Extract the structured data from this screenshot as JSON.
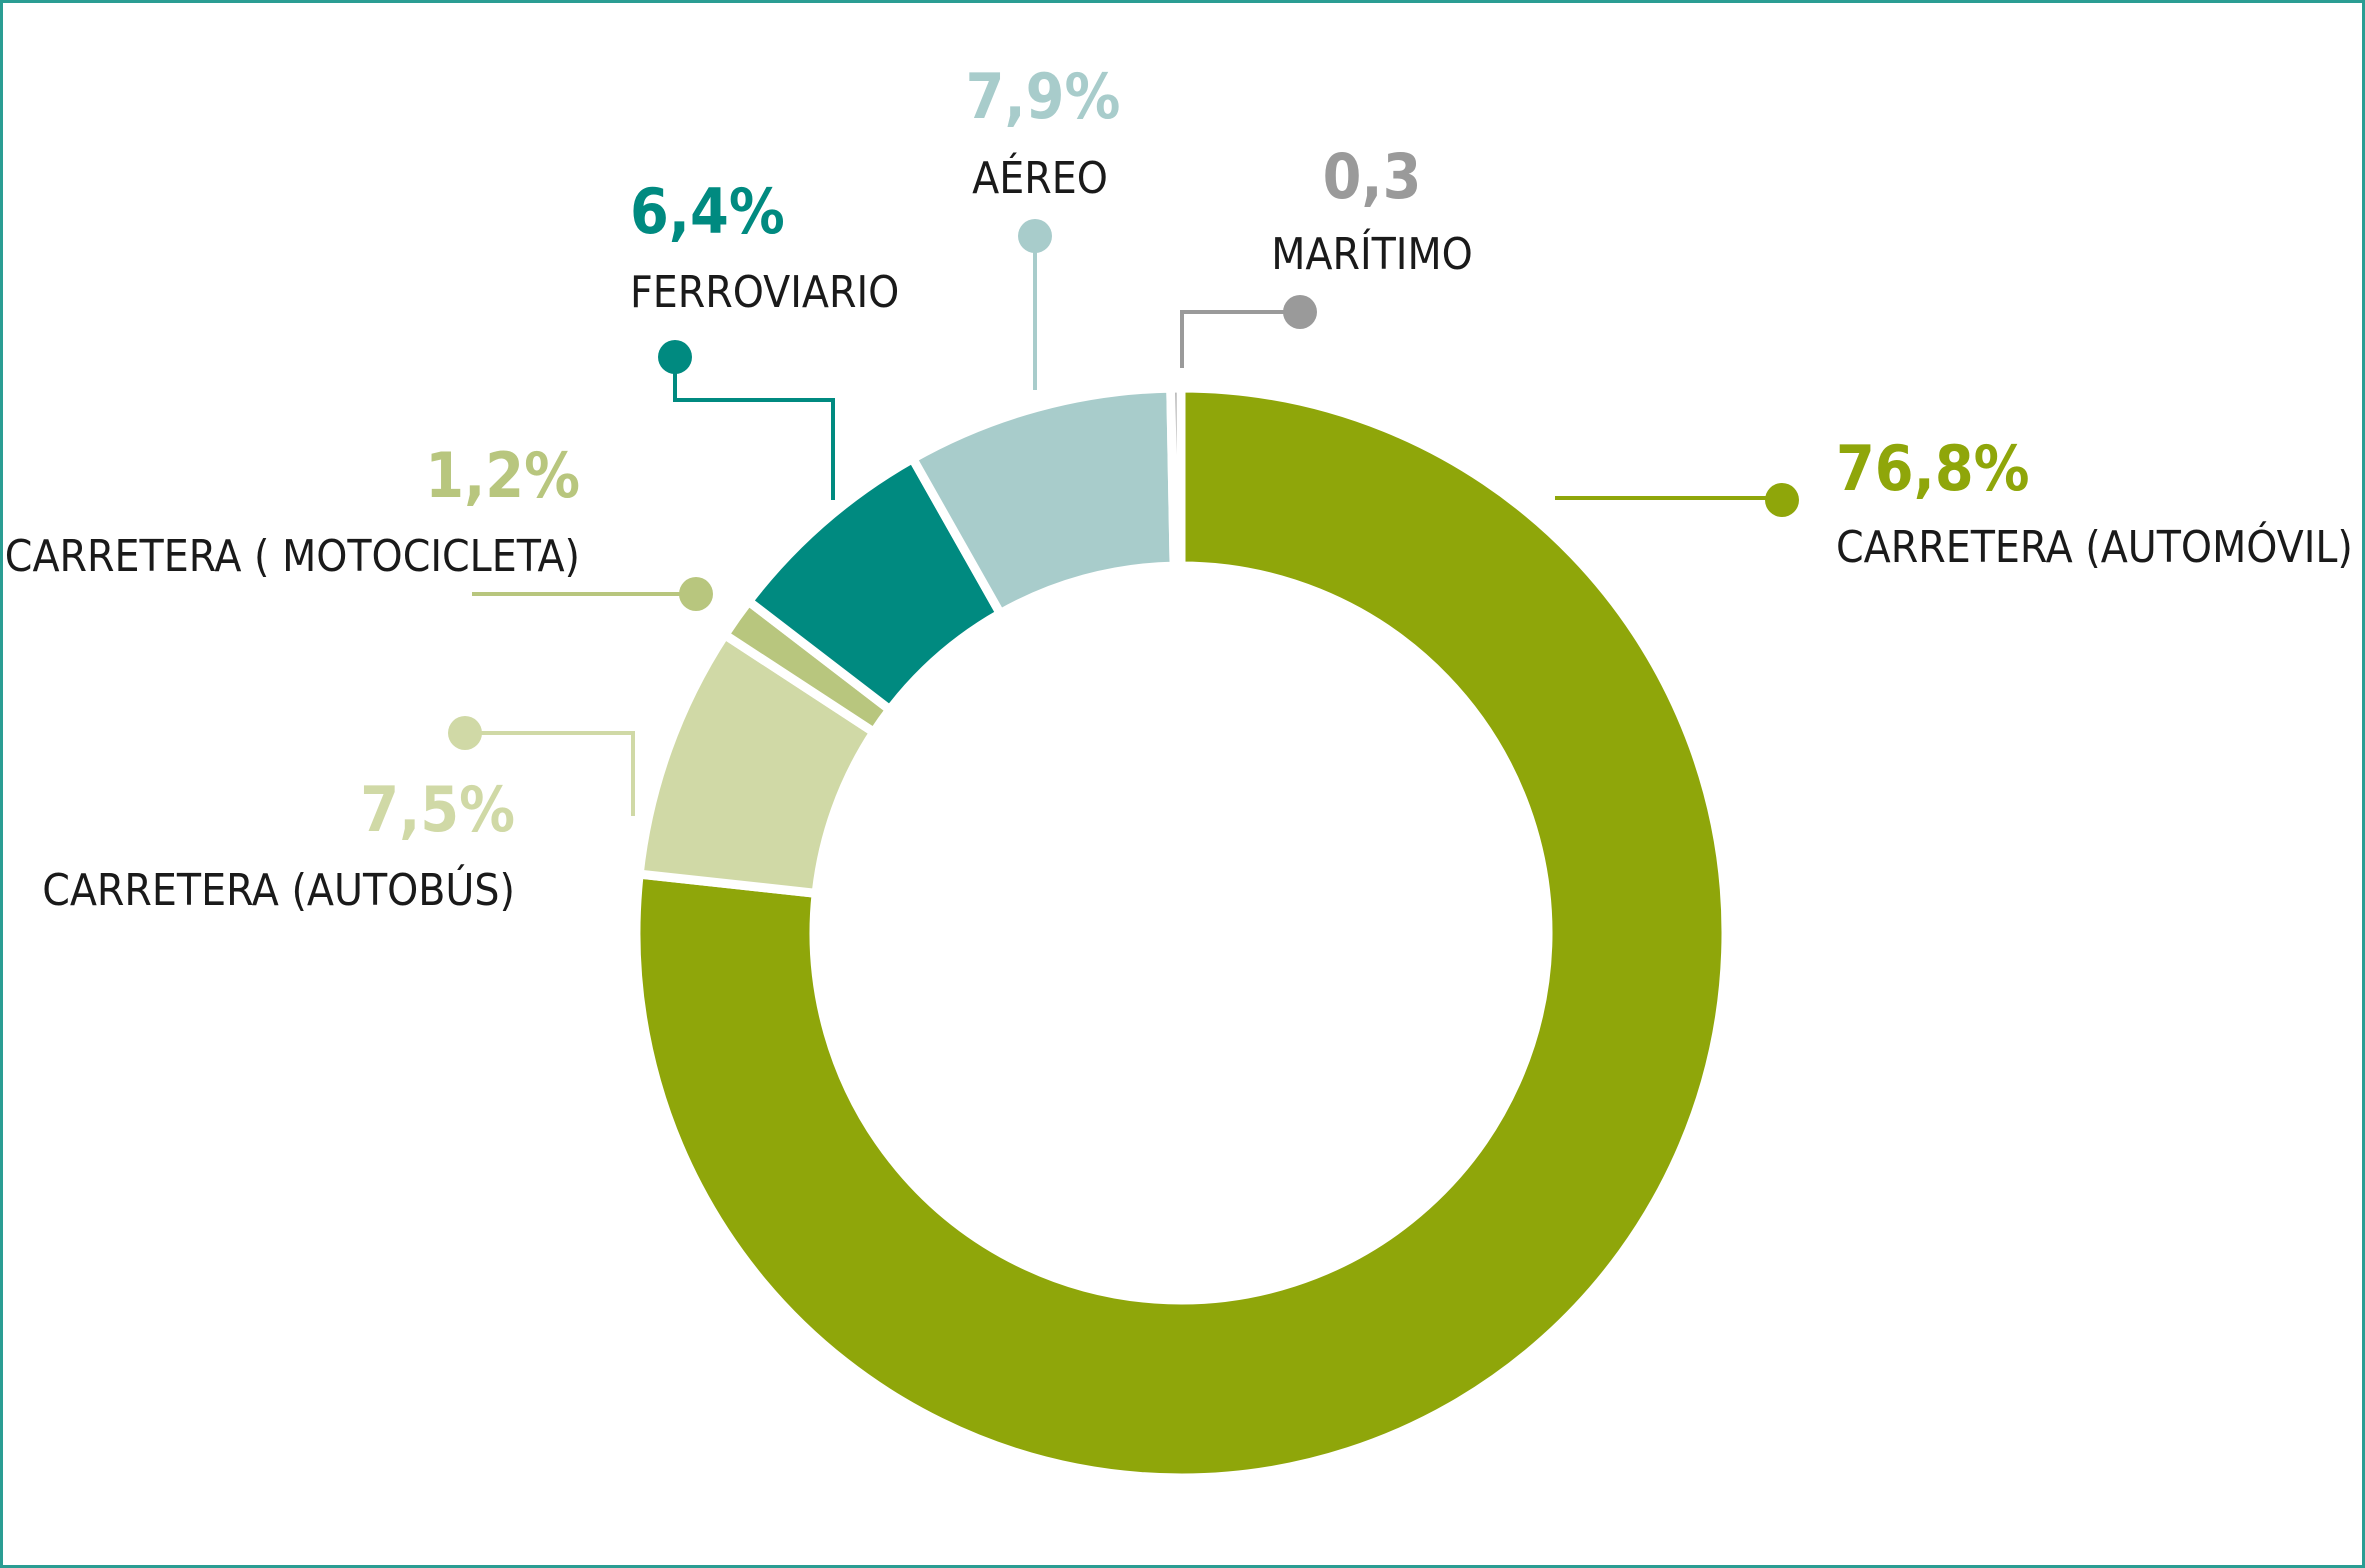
{
  "chart_data": {
    "type": "pie",
    "variant": "donut",
    "slices": [
      {
        "key": "automovil",
        "label": "CARRETERA (AUTOMÓVIL)",
        "value": 76.8,
        "value_label": "76,8%",
        "color": "#8fa60a"
      },
      {
        "key": "autobus",
        "label": "CARRETERA (AUTOBÚS)",
        "value": 7.5,
        "value_label": "7,5%",
        "color": "#d0d9a6"
      },
      {
        "key": "motocicleta",
        "label": "CARRETERA ( MOTOCICLETA)",
        "value": 1.2,
        "value_label": "1,2%",
        "color": "#b8c67e"
      },
      {
        "key": "ferroviario",
        "label": "FERROVIARIO",
        "value": 6.4,
        "value_label": "6,4%",
        "color": "#008a80"
      },
      {
        "key": "aereo",
        "label": "AÉREO",
        "value": 7.9,
        "value_label": "7,9%",
        "color": "#a8cccb"
      },
      {
        "key": "maritimo",
        "label": "MARÍTIMO",
        "value": 0.3,
        "value_label": "0,3",
        "color": "#9a9a9a"
      }
    ],
    "start": "12 o'clock, clockwise",
    "legend": "callout labels"
  }
}
